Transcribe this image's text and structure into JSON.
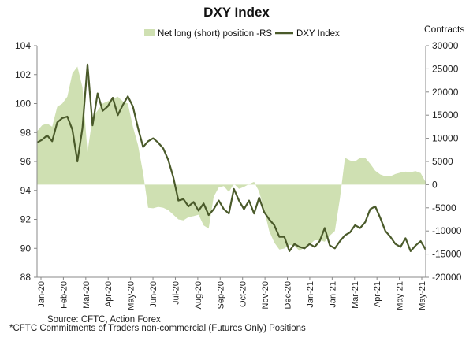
{
  "chart_data": {
    "type": "line",
    "title": "DXY Index",
    "legend": [
      {
        "name": "Net long (short) position -RS",
        "kind": "area",
        "color": "#cfe0b2"
      },
      {
        "name": "DXY Index",
        "kind": "line",
        "color": "#4a5a2a"
      }
    ],
    "right_axis_label": "Contracts",
    "left_axis": {
      "min": 88,
      "max": 104,
      "ticks": [
        "104",
        "102",
        "100",
        "98",
        "96",
        "94",
        "92",
        "90",
        "88"
      ]
    },
    "right_axis": {
      "min": -20000,
      "max": 30000,
      "ticks": [
        "30000",
        "25000",
        "20000",
        "15000",
        "10000",
        "5000",
        "0",
        "-5000",
        "-10000",
        "-15000",
        "-20000"
      ]
    },
    "x_labels": [
      "Jan-20",
      "Feb-20",
      "Mar-20",
      "Apr-20",
      "May-20",
      "Jun-20",
      "Jul-20",
      "Aug-20",
      "Sep-20",
      "Oct-20",
      "Nov-20",
      "Dec-20",
      "Jan-21",
      "Jan-21",
      "Mar-21",
      "Apr-21",
      "May-21",
      "May-21"
    ],
    "series": [
      {
        "name": "DXY Index",
        "axis": "left",
        "values": [
          97.3,
          97.5,
          97.8,
          97.4,
          98.7,
          99.0,
          99.1,
          98.2,
          96.0,
          98.3,
          102.7,
          98.5,
          100.7,
          99.5,
          99.8,
          100.4,
          99.2,
          99.9,
          100.5,
          99.8,
          98.3,
          97.0,
          97.4,
          97.6,
          97.3,
          96.9,
          96.1,
          94.9,
          93.3,
          93.4,
          92.9,
          93.2,
          92.6,
          93.1,
          92.3,
          92.7,
          93.3,
          92.7,
          92.4,
          94.1,
          93.3,
          92.7,
          93.3,
          92.4,
          93.5,
          92.5,
          92.0,
          91.6,
          90.8,
          90.8,
          89.8,
          90.3,
          90.1,
          90.0,
          90.3,
          90.1,
          90.5,
          91.4,
          90.2,
          90.0,
          90.5,
          90.9,
          91.1,
          91.6,
          91.4,
          91.8,
          92.7,
          92.9,
          92.1,
          91.2,
          90.8,
          90.3,
          90.1,
          90.7,
          89.8,
          90.2,
          90.5,
          89.9
        ]
      },
      {
        "name": "Net long (short) position -RS",
        "axis": "right",
        "values": [
          11500,
          12800,
          13200,
          12500,
          16800,
          17500,
          19000,
          24000,
          25500,
          21000,
          7000,
          14500,
          16000,
          17500,
          18000,
          18500,
          19000,
          18000,
          17500,
          12500,
          8500,
          2500,
          -5000,
          -5100,
          -4800,
          -5000,
          -5500,
          -6500,
          -7500,
          -7700,
          -7000,
          -6800,
          -6500,
          -8800,
          -9500,
          -2600,
          -600,
          -300,
          -1600,
          200,
          -900,
          -500,
          100,
          600,
          -1500,
          -5500,
          -10000,
          -12500,
          -14000,
          -13800,
          -13000,
          -13200,
          -14300,
          -13500,
          -13000,
          -12000,
          -12000,
          -12300,
          -11000,
          -10000,
          -3000,
          5800,
          5200,
          5000,
          5800,
          5800,
          4500,
          3000,
          2200,
          1800,
          1800,
          2300,
          2600,
          2800,
          2700,
          2900,
          2500,
          500
        ]
      }
    ],
    "source_note": "Source: CFTC, Action Forex",
    "footnote": "*CFTC Commitments of Traders non-commercial (Futures Only) Positions"
  }
}
